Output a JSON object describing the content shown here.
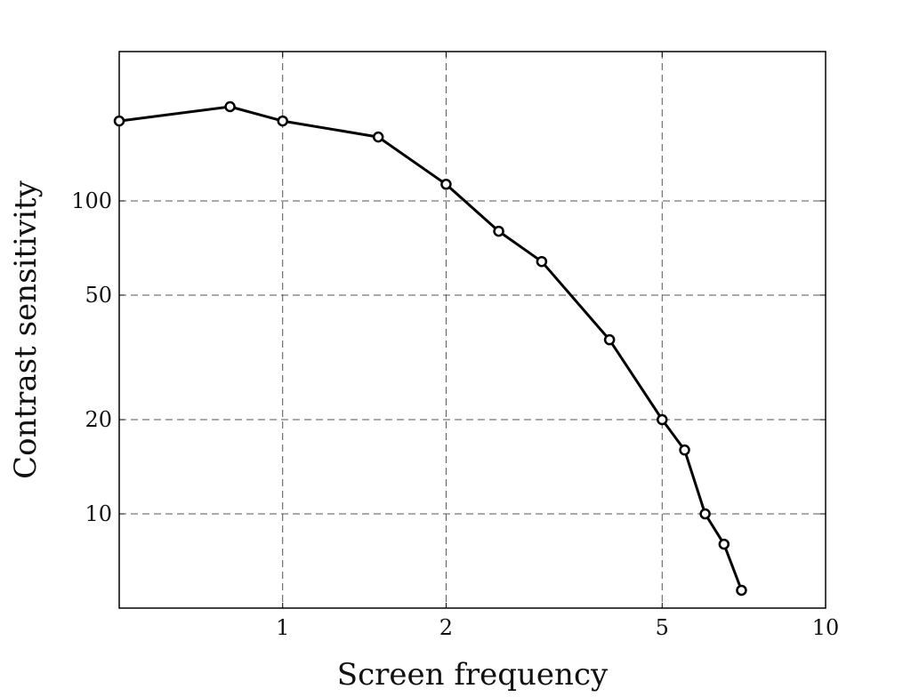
{
  "chart_data": {
    "type": "line",
    "title": "",
    "xlabel": "Screen frequency",
    "ylabel": "Contrast sensitivity",
    "x_scale": "log",
    "y_scale": "log",
    "xlim": [
      0.5,
      10
    ],
    "ylim": [
      5,
      300
    ],
    "xticks": [
      1,
      2,
      5,
      10
    ],
    "xtick_labels": [
      "1",
      "2",
      "5",
      "10"
    ],
    "yticks": [
      10,
      20,
      50,
      100
    ],
    "ytick_labels": [
      "10",
      "20",
      "50",
      "100"
    ],
    "grid": true,
    "grid_style": "dashed",
    "legend": "none",
    "series": [
      {
        "x": [
          0.5,
          0.8,
          1.0,
          1.5,
          2.0,
          2.5,
          3.0,
          4.0,
          5.0,
          5.5,
          6.0,
          6.5,
          7.0
        ],
        "y": [
          180,
          200,
          180,
          160,
          113,
          80,
          64,
          36,
          20,
          16,
          10,
          8,
          5.7
        ]
      }
    ],
    "colors": {
      "line": "#000000",
      "grid": "#555555",
      "frame": "#000000"
    }
  }
}
